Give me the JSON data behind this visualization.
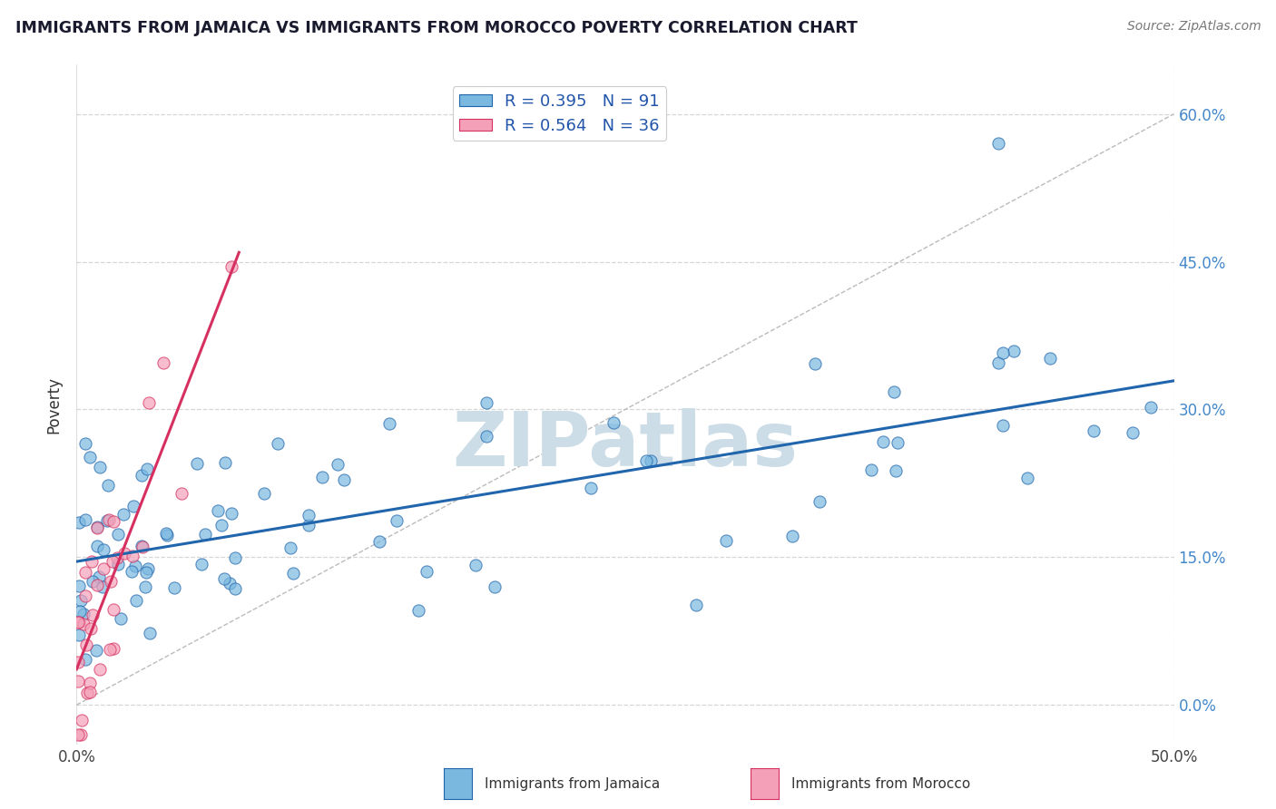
{
  "title": "IMMIGRANTS FROM JAMAICA VS IMMIGRANTS FROM MOROCCO POVERTY CORRELATION CHART",
  "source_text": "Source: ZipAtlas.com",
  "ylabel": "Poverty",
  "xlim": [
    0.0,
    0.5
  ],
  "ylim": [
    -0.04,
    0.65
  ],
  "ytick_vals": [
    0.0,
    0.15,
    0.3,
    0.45,
    0.6
  ],
  "ytick_labels": [
    "0.0%",
    "15.0%",
    "30.0%",
    "45.0%",
    "60.0%"
  ],
  "R_jamaica": 0.395,
  "N_jamaica": 91,
  "R_morocco": 0.564,
  "N_morocco": 36,
  "color_jamaica": "#7ab8e0",
  "color_morocco": "#f4a0b8",
  "line_color_jamaica": "#2166ac",
  "line_color_morocco": "#d63060",
  "watermark": "ZIPatlas",
  "watermark_color": "#ccdde8",
  "background_color": "#ffffff",
  "grid_color": "#cccccc",
  "legend_label_jamaica": "Immigrants from Jamaica",
  "legend_label_morocco": "Immigrants from Morocco",
  "jam_intercept": 0.148,
  "jam_slope": 0.31,
  "mor_intercept": 0.05,
  "mor_slope": 5.5
}
